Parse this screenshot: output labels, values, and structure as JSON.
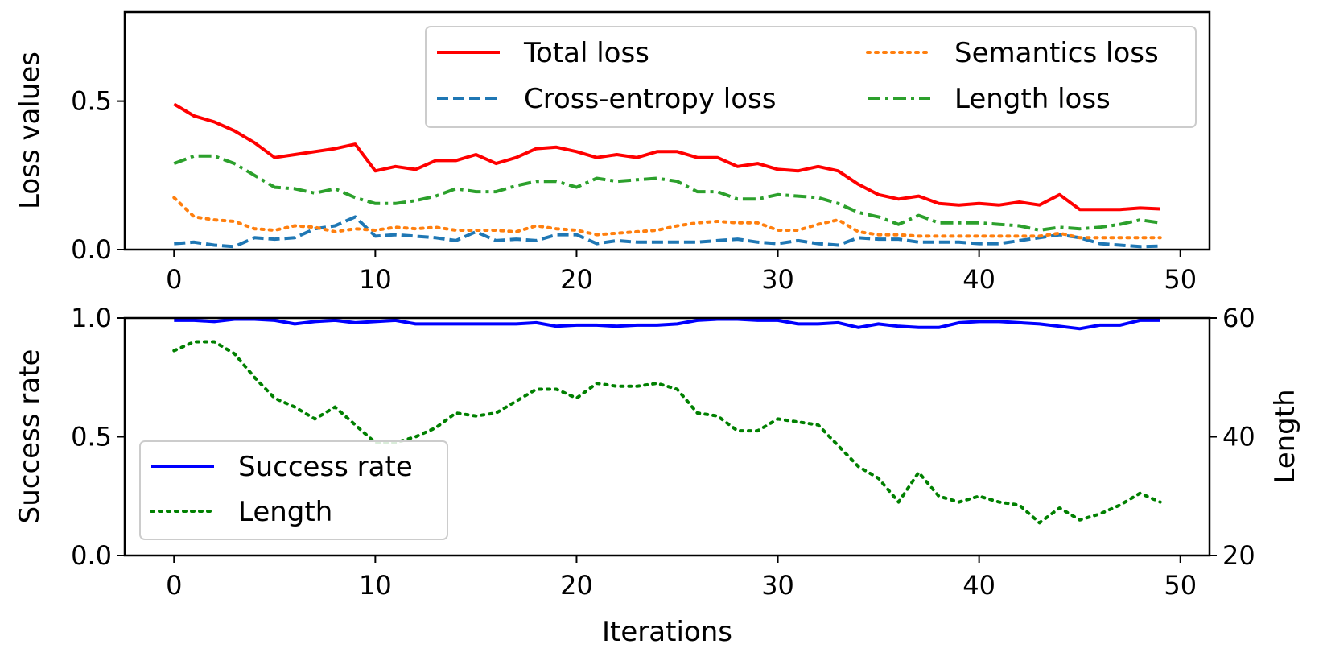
{
  "chart_data": [
    {
      "type": "line",
      "title": "",
      "xlabel": "",
      "ylabel": "Loss values",
      "xlim": [
        -2.45,
        51.45
      ],
      "ylim": [
        0.0,
        0.8
      ],
      "xticks": [
        0,
        10,
        20,
        30,
        40,
        50
      ],
      "xtick_labels": [
        "0",
        "10",
        "20",
        "30",
        "40",
        "50"
      ],
      "yticks": [
        0.0,
        0.5
      ],
      "ytick_labels": [
        "0.0",
        "0.5"
      ],
      "legend_position": "top-right",
      "x": [
        0,
        1,
        2,
        3,
        4,
        5,
        6,
        7,
        8,
        9,
        10,
        11,
        12,
        13,
        14,
        15,
        16,
        17,
        18,
        19,
        20,
        21,
        22,
        23,
        24,
        25,
        26,
        27,
        28,
        29,
        30,
        31,
        32,
        33,
        34,
        35,
        36,
        37,
        38,
        39,
        40,
        41,
        42,
        43,
        44,
        45,
        46,
        47,
        48,
        49
      ],
      "series": [
        {
          "name": "Total loss",
          "color": "#ff0000",
          "style": "solid",
          "values": [
            0.49,
            0.45,
            0.43,
            0.4,
            0.36,
            0.31,
            0.32,
            0.33,
            0.34,
            0.355,
            0.265,
            0.28,
            0.27,
            0.3,
            0.3,
            0.32,
            0.29,
            0.31,
            0.34,
            0.345,
            0.33,
            0.31,
            0.32,
            0.31,
            0.33,
            0.33,
            0.31,
            0.31,
            0.28,
            0.29,
            0.27,
            0.265,
            0.28,
            0.265,
            0.22,
            0.185,
            0.17,
            0.18,
            0.155,
            0.15,
            0.155,
            0.15,
            0.16,
            0.15,
            0.185,
            0.135,
            0.135,
            0.135,
            0.14,
            0.137
          ]
        },
        {
          "name": "Cross-entropy loss",
          "color": "#1f77b4",
          "style": "dashed",
          "values": [
            0.02,
            0.025,
            0.015,
            0.01,
            0.04,
            0.035,
            0.04,
            0.07,
            0.08,
            0.11,
            0.045,
            0.05,
            0.045,
            0.04,
            0.03,
            0.06,
            0.03,
            0.035,
            0.03,
            0.05,
            0.05,
            0.02,
            0.03,
            0.025,
            0.025,
            0.025,
            0.025,
            0.03,
            0.035,
            0.025,
            0.02,
            0.03,
            0.02,
            0.015,
            0.04,
            0.035,
            0.035,
            0.025,
            0.025,
            0.025,
            0.02,
            0.02,
            0.03,
            0.04,
            0.05,
            0.04,
            0.02,
            0.015,
            0.01,
            0.012
          ]
        },
        {
          "name": "Semantics loss",
          "color": "#ff7f0e",
          "style": "dotted",
          "values": [
            0.175,
            0.11,
            0.1,
            0.095,
            0.07,
            0.065,
            0.08,
            0.075,
            0.06,
            0.07,
            0.065,
            0.075,
            0.07,
            0.075,
            0.065,
            0.065,
            0.065,
            0.06,
            0.08,
            0.07,
            0.065,
            0.05,
            0.055,
            0.06,
            0.065,
            0.08,
            0.09,
            0.095,
            0.09,
            0.09,
            0.065,
            0.065,
            0.085,
            0.1,
            0.06,
            0.05,
            0.05,
            0.045,
            0.045,
            0.045,
            0.045,
            0.045,
            0.045,
            0.045,
            0.055,
            0.04,
            0.04,
            0.04,
            0.04,
            0.04
          ]
        },
        {
          "name": "Length loss",
          "color": "#2ca02c",
          "style": "dashdot",
          "values": [
            0.29,
            0.315,
            0.315,
            0.29,
            0.25,
            0.21,
            0.205,
            0.19,
            0.205,
            0.175,
            0.155,
            0.155,
            0.165,
            0.18,
            0.205,
            0.195,
            0.195,
            0.215,
            0.23,
            0.23,
            0.21,
            0.24,
            0.23,
            0.235,
            0.24,
            0.23,
            0.195,
            0.195,
            0.17,
            0.17,
            0.185,
            0.18,
            0.175,
            0.155,
            0.125,
            0.11,
            0.085,
            0.115,
            0.09,
            0.09,
            0.09,
            0.085,
            0.08,
            0.065,
            0.075,
            0.07,
            0.075,
            0.085,
            0.1,
            0.09
          ]
        }
      ]
    },
    {
      "type": "line",
      "title": "",
      "xlabel": "Iterations",
      "ylabel": "Success rate",
      "ylabel_right": "Length",
      "xlim": [
        -2.45,
        51.45
      ],
      "ylim": [
        0.0,
        1.0
      ],
      "ylim_right": [
        20,
        60
      ],
      "xticks": [
        0,
        10,
        20,
        30,
        40,
        50
      ],
      "xtick_labels": [
        "0",
        "10",
        "20",
        "30",
        "40",
        "50"
      ],
      "yticks": [
        0.0,
        0.5,
        1.0
      ],
      "ytick_labels": [
        "0.0",
        "0.5",
        "1.0"
      ],
      "yticks_right": [
        20,
        40,
        60
      ],
      "ytick_labels_right": [
        "20",
        "40",
        "60"
      ],
      "legend_position": "lower-left",
      "x": [
        0,
        1,
        2,
        3,
        4,
        5,
        6,
        7,
        8,
        9,
        10,
        11,
        12,
        13,
        14,
        15,
        16,
        17,
        18,
        19,
        20,
        21,
        22,
        23,
        24,
        25,
        26,
        27,
        28,
        29,
        30,
        31,
        32,
        33,
        34,
        35,
        36,
        37,
        38,
        39,
        40,
        41,
        42,
        43,
        44,
        45,
        46,
        47,
        48,
        49
      ],
      "series": [
        {
          "name": "Success rate",
          "axis": "left",
          "color": "#0000ff",
          "style": "solid",
          "values": [
            0.99,
            0.99,
            0.985,
            0.995,
            0.995,
            0.99,
            0.975,
            0.985,
            0.99,
            0.98,
            0.985,
            0.99,
            0.975,
            0.975,
            0.975,
            0.975,
            0.975,
            0.975,
            0.98,
            0.965,
            0.97,
            0.97,
            0.965,
            0.97,
            0.97,
            0.975,
            0.99,
            0.995,
            0.995,
            0.99,
            0.99,
            0.975,
            0.975,
            0.98,
            0.96,
            0.975,
            0.965,
            0.96,
            0.96,
            0.98,
            0.985,
            0.985,
            0.98,
            0.975,
            0.965,
            0.955,
            0.97,
            0.97,
            0.99,
            0.99
          ]
        },
        {
          "name": "Length",
          "axis": "right",
          "color": "#008000",
          "style": "dotted",
          "values": [
            54.5,
            56,
            56,
            54,
            50,
            46.5,
            45,
            43,
            45,
            42,
            39,
            39,
            40,
            41.5,
            44,
            43.5,
            44,
            46,
            48,
            48,
            46.5,
            49,
            48.5,
            48.5,
            49,
            48,
            44,
            43.5,
            41,
            41,
            43,
            42.5,
            42,
            38.5,
            35,
            33,
            29,
            34,
            30,
            29,
            30,
            29,
            28.5,
            25.5,
            28,
            26,
            27,
            28.5,
            30.5,
            29
          ]
        }
      ]
    }
  ]
}
